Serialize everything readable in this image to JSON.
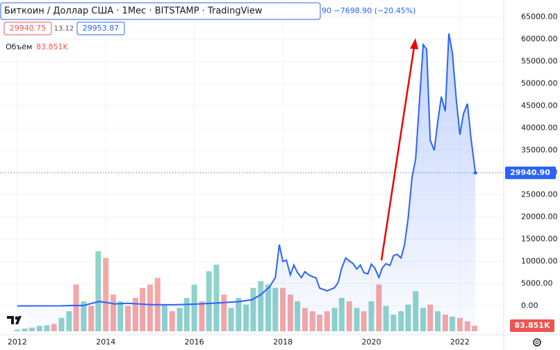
{
  "header": {
    "title": "Биткоин / Доллар США · 1Мес · BITSTAMP · TradingView",
    "change": "90 −7698.90 (−20.45%)",
    "bid": "29940.75",
    "spread": "13.12",
    "ask": "29953.87",
    "volume_name": "Объём"
  },
  "chart_data": {
    "type": "area",
    "color": "#2962ff",
    "fill": "#2962ff",
    "x": [
      2012.0,
      2013.0,
      2013.25,
      2013.5,
      2013.85,
      2014.0,
      2014.2,
      2014.5,
      2015.0,
      2015.5,
      2016.0,
      2016.5,
      2017.0,
      2017.3,
      2017.5,
      2017.7,
      2017.83,
      2017.92,
      2018.0,
      2018.08,
      2018.17,
      2018.25,
      2018.33,
      2018.42,
      2018.5,
      2018.58,
      2018.67,
      2018.75,
      2018.83,
      2018.92,
      2019.0,
      2019.17,
      2019.25,
      2019.33,
      2019.42,
      2019.5,
      2019.58,
      2019.67,
      2019.75,
      2019.83,
      2019.92,
      2020.0,
      2020.08,
      2020.17,
      2020.25,
      2020.33,
      2020.42,
      2020.5,
      2020.58,
      2020.67,
      2020.75,
      2020.83,
      2020.92,
      2021.0,
      2021.08,
      2021.17,
      2021.25,
      2021.33,
      2021.42,
      2021.5,
      2021.58,
      2021.67,
      2021.75,
      2021.83,
      2021.92,
      2022.0,
      2022.08,
      2022.17,
      2022.25,
      2022.35
    ],
    "values": [
      5,
      13,
      100,
      90,
      1000,
      800,
      450,
      600,
      300,
      250,
      400,
      650,
      950,
      1400,
      2500,
      4300,
      6400,
      13800,
      10000,
      10300,
      7000,
      9200,
      7500,
      6400,
      7700,
      7000,
      6600,
      6300,
      4000,
      3700,
      3400,
      4100,
      5300,
      8500,
      10800,
      10100,
      9600,
      8300,
      9200,
      7500,
      7200,
      9400,
      8500,
      6400,
      8600,
      9500,
      9100,
      11300,
      11600,
      10800,
      13800,
      19700,
      29000,
      33000,
      45000,
      58800,
      57700,
      37300,
      35000,
      41500,
      47100,
      43800,
      61300,
      57000,
      46300,
      38500,
      43200,
      45500,
      37700,
      29940.9
    ],
    "last_label": "29940.90",
    "xlim": [
      2011.61,
      2022.99
    ],
    "xticks": [
      2012,
      2014,
      2016,
      2018,
      2020,
      2022
    ],
    "ylim": [
      -6170,
      68830
    ],
    "yticks": [
      {
        "value": 0,
        "label": "0.00"
      },
      {
        "value": 5000,
        "label": "5000.00"
      },
      {
        "value": 10000,
        "label": "10000.00"
      },
      {
        "value": 15000,
        "label": "15000.00"
      },
      {
        "value": 20000,
        "label": "20000.00"
      },
      {
        "value": 25000,
        "label": "25000.00"
      },
      {
        "value": 30000,
        "label": "30000.00"
      },
      {
        "value": 35000,
        "label": "35000.00"
      },
      {
        "value": 40000,
        "label": "40000.00"
      },
      {
        "value": 45000,
        "label": "45000.00"
      },
      {
        "value": 50000,
        "label": "50000.00"
      },
      {
        "value": 55000,
        "label": "55000.00"
      },
      {
        "value": 60000,
        "label": "60000.00"
      },
      {
        "value": 65000,
        "label": "65000.00"
      }
    ],
    "volume": {
      "ylim": [
        0,
        1250
      ],
      "last_label": "83.851K",
      "x": [
        2012.0,
        2012.17,
        2012.33,
        2012.5,
        2012.67,
        2012.83,
        2013.0,
        2013.17,
        2013.33,
        2013.5,
        2013.67,
        2013.83,
        2014.0,
        2014.17,
        2014.33,
        2014.5,
        2014.67,
        2014.83,
        2015.0,
        2015.17,
        2015.33,
        2015.5,
        2015.67,
        2015.83,
        2016.0,
        2016.17,
        2016.33,
        2016.5,
        2016.67,
        2016.83,
        2017.0,
        2017.17,
        2017.33,
        2017.5,
        2017.67,
        2017.83,
        2018.0,
        2018.17,
        2018.33,
        2018.5,
        2018.67,
        2018.83,
        2019.0,
        2019.17,
        2019.33,
        2019.5,
        2019.67,
        2019.83,
        2020.0,
        2020.17,
        2020.33,
        2020.5,
        2020.67,
        2020.83,
        2021.0,
        2021.17,
        2021.33,
        2021.5,
        2021.67,
        2021.83,
        2022.0,
        2022.17,
        2022.33
      ],
      "values": [
        25,
        40,
        55,
        80,
        90,
        110,
        200,
        300,
        700,
        450,
        380,
        1200,
        1100,
        550,
        450,
        380,
        500,
        650,
        700,
        800,
        400,
        300,
        350,
        500,
        700,
        450,
        900,
        1000,
        550,
        350,
        500,
        400,
        650,
        750,
        700,
        650,
        650,
        550,
        450,
        350,
        300,
        250,
        300,
        350,
        500,
        450,
        350,
        300,
        450,
        700,
        380,
        250,
        300,
        400,
        600,
        350,
        400,
        300,
        250,
        220,
        200,
        150,
        83.851
      ],
      "colors": [
        "#8fd3cb",
        "#8fd3cb",
        "#8fd3cb",
        "#8fd3cb",
        "#8fd3cb",
        "#f5a8a6",
        "#8fd3cb",
        "#8fd3cb",
        "#f5a8a6",
        "#8fd3cb",
        "#f5a8a6",
        "#8fd3cb",
        "#f5a8a6",
        "#f5a8a6",
        "#8fd3cb",
        "#f5a8a6",
        "#f5a8a6",
        "#f5a8a6",
        "#f5a8a6",
        "#f5a8a6",
        "#8fd3cb",
        "#f5a8a6",
        "#8fd3cb",
        "#8fd3cb",
        "#8fd3cb",
        "#f5a8a6",
        "#8fd3cb",
        "#8fd3cb",
        "#f5a8a6",
        "#8fd3cb",
        "#8fd3cb",
        "#8fd3cb",
        "#8fd3cb",
        "#8fd3cb",
        "#8fd3cb",
        "#8fd3cb",
        "#f5a8a6",
        "#f5a8a6",
        "#8fd3cb",
        "#f5a8a6",
        "#f5a8a6",
        "#f5a8a6",
        "#f5a8a6",
        "#8fd3cb",
        "#8fd3cb",
        "#f5a8a6",
        "#8fd3cb",
        "#f5a8a6",
        "#8fd3cb",
        "#f5a8a6",
        "#8fd3cb",
        "#8fd3cb",
        "#8fd3cb",
        "#8fd3cb",
        "#8fd3cb",
        "#8fd3cb",
        "#f5a8a6",
        "#8fd3cb",
        "#f5a8a6",
        "#8fd3cb",
        "#f5a8a6",
        "#f5a8a6",
        "#f5a8a6"
      ]
    }
  }
}
